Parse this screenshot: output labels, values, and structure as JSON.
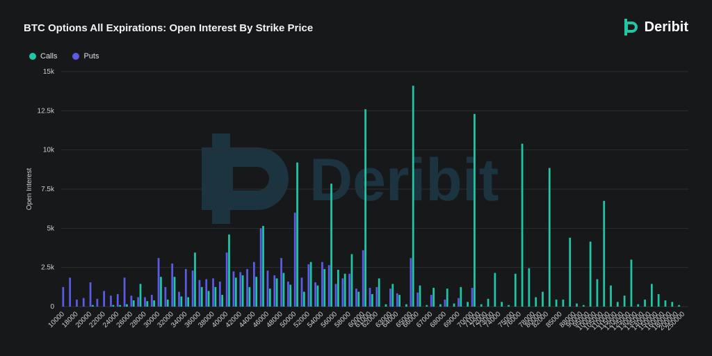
{
  "header": {
    "title": "BTC Options All Expirations: Open Interest By Strike Price",
    "brand": "Deribit",
    "watermark": "Deribit"
  },
  "colors": {
    "calls": "#1fc7a6",
    "puts": "#5b5ce6",
    "background": "#17181a",
    "grid": "#2c2e31",
    "watermark": "#1b3440"
  },
  "chart_data": {
    "type": "bar",
    "ylabel": "Open Interest",
    "xlabel": "",
    "ylim": [
      0,
      15000
    ],
    "yticks": [
      0,
      2500,
      5000,
      7500,
      10000,
      12500,
      15000
    ],
    "ytick_labels": [
      "0",
      "2.5k",
      "5k",
      "7.5k",
      "10k",
      "12.5k",
      "15k"
    ],
    "legend_position": "top-left",
    "categories": [
      "10000",
      "15000",
      "18000",
      "19000",
      "20000",
      "21000",
      "22000",
      "23000",
      "24000",
      "25000",
      "26000",
      "27000",
      "28000",
      "29000",
      "30000",
      "31000",
      "32000",
      "33000",
      "34000",
      "35000",
      "36000",
      "37000",
      "38000",
      "39000",
      "40000",
      "41000",
      "42000",
      "43000",
      "44000",
      "45000",
      "46000",
      "47000",
      "48000",
      "49000",
      "50000",
      "51000",
      "52000",
      "53000",
      "54000",
      "55000",
      "56000",
      "57000",
      "58000",
      "59000",
      "60000",
      "61000",
      "62000",
      "62500",
      "63000",
      "64000",
      "64500",
      "65000",
      "66000",
      "66500",
      "67000",
      "67500",
      "68000",
      "68500",
      "69000",
      "69500",
      "70000",
      "71000",
      "72000",
      "73000",
      "74000",
      "74500",
      "75000",
      "76000",
      "77000",
      "78000",
      "80000",
      "82000",
      "84000",
      "85000",
      "86000",
      "88000",
      "90000",
      "95000",
      "100000",
      "105000",
      "110000",
      "115000",
      "120000",
      "125000",
      "130000",
      "135000",
      "140000",
      "150000",
      "160000",
      "180000",
      "200000",
      "250000"
    ],
    "series": [
      {
        "name": "Calls",
        "values": [
          0,
          0,
          0,
          0,
          100,
          0,
          0,
          100,
          100,
          150,
          400,
          1450,
          350,
          400,
          1900,
          450,
          1900,
          650,
          600,
          3450,
          1250,
          1000,
          1250,
          750,
          4600,
          1850,
          2000,
          1250,
          1900,
          5150,
          1150,
          1800,
          2150,
          1400,
          9200,
          950,
          2850,
          1350,
          2400,
          7850,
          2350,
          2100,
          3350,
          950,
          12600,
          800,
          1800,
          150,
          1450,
          750,
          150,
          14100,
          1350,
          100,
          1200,
          150,
          1150,
          200,
          1250,
          300,
          12300,
          150,
          500,
          2150,
          300,
          100,
          2100,
          10400,
          2450,
          600,
          950,
          8850,
          450,
          450,
          4400,
          200,
          100,
          4150,
          1750,
          6750,
          1350,
          300,
          700,
          3000,
          150,
          450,
          1450,
          800,
          400,
          300,
          100,
          0
        ],
        "labels": [
          "10000",
          "",
          "18000",
          "",
          "20000",
          "",
          "22000",
          "",
          "24000",
          "",
          "26000",
          "",
          "28000",
          "",
          "30000",
          "",
          "32000",
          "",
          "34000",
          "",
          "36000",
          "",
          "38000",
          "",
          "40000",
          "",
          "42000",
          "",
          "44000",
          "",
          "46000",
          "",
          "48000",
          "",
          "50000",
          "",
          "52000",
          "",
          "54000",
          "",
          "56000",
          "",
          "58000",
          "",
          "60000",
          "61000",
          "62000",
          "",
          "63000",
          "64000",
          "",
          "65000",
          "66000",
          "",
          "67000",
          "",
          "68000",
          "",
          "69000",
          "",
          "70000",
          "71000",
          "72000",
          "73000",
          "74000",
          "",
          "75000",
          "76000",
          "",
          "78000",
          "80000",
          "82000",
          "",
          "85000",
          "",
          "88000",
          "90000",
          "95000",
          "100000",
          "105000",
          "110000",
          "115000",
          "120000",
          "125000",
          "130000",
          "135000",
          "140000",
          "150000",
          "160000",
          "180000",
          "200000",
          "250000"
        ]
      },
      {
        "name": "Puts",
        "values": [
          1250,
          1850,
          450,
          550,
          1550,
          500,
          1000,
          700,
          800,
          1850,
          700,
          600,
          600,
          750,
          3100,
          1250,
          2750,
          950,
          2400,
          2300,
          1700,
          1750,
          1800,
          1600,
          3450,
          2250,
          2200,
          2400,
          2850,
          5000,
          2300,
          2000,
          3100,
          1600,
          6000,
          1850,
          2700,
          1550,
          2850,
          2650,
          1450,
          1800,
          2100,
          1150,
          3600,
          1200,
          1250,
          0,
          1150,
          850,
          0,
          3100,
          900,
          0,
          750,
          0,
          450,
          0,
          550,
          0,
          1200,
          0,
          0,
          0,
          0,
          0,
          0,
          0,
          0,
          0,
          0,
          0,
          0,
          0,
          0,
          0,
          0,
          0,
          0,
          0,
          0,
          0,
          0,
          0,
          0,
          0,
          0,
          0,
          0,
          0,
          0,
          0
        ]
      }
    ]
  }
}
